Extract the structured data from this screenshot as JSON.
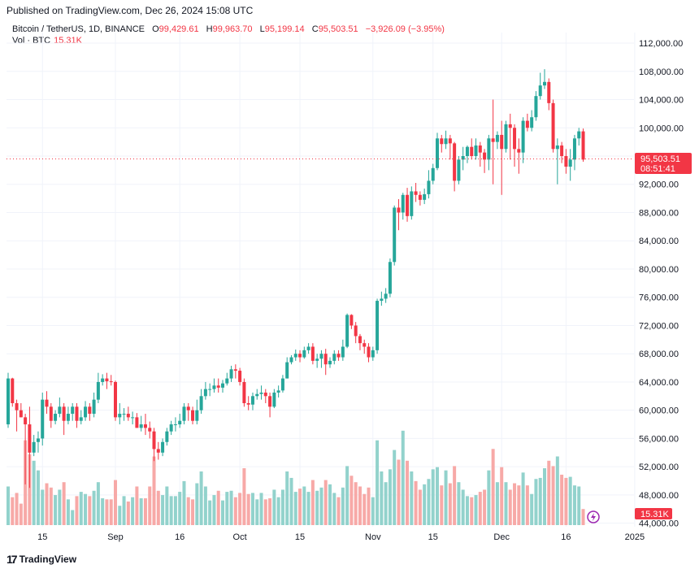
{
  "header": {
    "published": "Published on TradingView.com, Dec 26, 2024 15:08 UTC"
  },
  "legend": {
    "symbol": "Bitcoin / TetherUS, 1D, BINANCE",
    "o_label": "O",
    "o_value": "99,429.61",
    "h_label": "H",
    "h_value": "99,963.70",
    "l_label": "L",
    "l_value": "95,199.14",
    "c_label": "C",
    "c_value": "95,503.51",
    "change": "−3,926.09 (−3.95%)",
    "vol_label": "Vol · BTC",
    "vol_value": "15.31K"
  },
  "price_badge": {
    "price": "95,503.51",
    "countdown": "08:51:41"
  },
  "volume_badge": "15.31K",
  "footer": {
    "brand": "TradingView",
    "logo_glyph": "17"
  },
  "colors": {
    "up": "#26a69a",
    "down": "#f23645",
    "up_vol": "#92d2cc",
    "down_vol": "#f7a9a7",
    "grid": "#f0f3fa"
  },
  "chart_data": {
    "type": "candlestick",
    "title": "Bitcoin / TetherUS, 1D, BINANCE",
    "y_ticks": [
      "112,000.00",
      "108,000.00",
      "104,000.00",
      "100,000.00",
      "96,000.00",
      "92,000.00",
      "88,000.00",
      "84,000.00",
      "80,000.00",
      "76,000.00",
      "72,000.00",
      "68,000.00",
      "64,000.00",
      "60,000.00",
      "56,000.00",
      "52,000.00",
      "48,000.00",
      "44,000.00"
    ],
    "y_tick_values": [
      112000,
      108000,
      104000,
      100000,
      96000,
      92000,
      88000,
      84000,
      80000,
      76000,
      72000,
      68000,
      64000,
      60000,
      56000,
      52000,
      48000,
      44000
    ],
    "ylim": [
      43500,
      113500
    ],
    "x_labels": [
      {
        "label": "15",
        "index": 8
      },
      {
        "label": "Sep",
        "index": 25
      },
      {
        "label": "16",
        "index": 40
      },
      {
        "label": "Oct",
        "index": 54
      },
      {
        "label": "15",
        "index": 68
      },
      {
        "label": "Nov",
        "index": 85
      },
      {
        "label": "15",
        "index": 99
      },
      {
        "label": "Dec",
        "index": 115
      },
      {
        "label": "16",
        "index": 130
      },
      {
        "label": "2025",
        "index": 146
      }
    ],
    "candles": [
      [
        58000,
        64500,
        65300,
        57500,
        3.6
      ],
      [
        64500,
        61000,
        64600,
        60500,
        2.6
      ],
      [
        61000,
        60000,
        61500,
        57000,
        3.0
      ],
      [
        60000,
        59000,
        61000,
        59000,
        2.0
      ],
      [
        59000,
        58000,
        59500,
        49500,
        7.9
      ],
      [
        58000,
        54000,
        60500,
        49000,
        6.6
      ],
      [
        54000,
        55500,
        56500,
        53500,
        6.0
      ],
      [
        55500,
        56000,
        57000,
        54000,
        5.1
      ],
      [
        56000,
        61500,
        62500,
        55000,
        3.3
      ],
      [
        61500,
        60500,
        62700,
        59500,
        3.9
      ],
      [
        60500,
        58500,
        61000,
        57500,
        3.5
      ],
      [
        58500,
        59500,
        60000,
        58000,
        2.8
      ],
      [
        59500,
        60500,
        61800,
        59000,
        3.3
      ],
      [
        60500,
        58500,
        61000,
        56500,
        4.0
      ],
      [
        58500,
        59500,
        60500,
        58000,
        2.4
      ],
      [
        59500,
        60500,
        61000,
        58500,
        1.4
      ],
      [
        60500,
        58500,
        61000,
        57500,
        2.7
      ],
      [
        58500,
        59000,
        60000,
        58000,
        3.1
      ],
      [
        59000,
        60500,
        61300,
        58500,
        2.9
      ],
      [
        60500,
        59500,
        61000,
        58500,
        2.7
      ],
      [
        59500,
        61500,
        62500,
        59000,
        3.2
      ],
      [
        61500,
        64000,
        65300,
        61000,
        4.0
      ],
      [
        64000,
        64500,
        65100,
        63500,
        2.5
      ],
      [
        64500,
        64100,
        65300,
        63000,
        2.4
      ],
      [
        64100,
        64000,
        65000,
        63500,
        2.4
      ],
      [
        64000,
        59000,
        64200,
        58500,
        4.2
      ],
      [
        59000,
        59500,
        61000,
        58000,
        1.8
      ],
      [
        59500,
        59500,
        60300,
        58500,
        2.7
      ],
      [
        59500,
        59000,
        60500,
        58500,
        2.2
      ],
      [
        59000,
        59000,
        59800,
        58000,
        2.6
      ],
      [
        59000,
        57500,
        59600,
        57500,
        3.6
      ],
      [
        57500,
        58000,
        59200,
        57000,
        2.5
      ],
      [
        58000,
        57500,
        59500,
        56500,
        2.5
      ],
      [
        57500,
        57000,
        58400,
        56000,
        3.6
      ],
      [
        57000,
        54500,
        57500,
        52800,
        6.4
      ],
      [
        54500,
        54000,
        55500,
        53000,
        3.2
      ],
      [
        54000,
        55500,
        56000,
        53500,
        2.8
      ],
      [
        55500,
        57000,
        57500,
        55000,
        3.6
      ],
      [
        57000,
        58000,
        58500,
        56500,
        2.7
      ],
      [
        58000,
        58000,
        59000,
        57000,
        2.7
      ],
      [
        58000,
        58500,
        59500,
        57500,
        3.1
      ],
      [
        58500,
        60500,
        61000,
        58000,
        4.1
      ],
      [
        60500,
        60000,
        61000,
        58500,
        2.6
      ],
      [
        60000,
        58500,
        60500,
        58000,
        2.4
      ],
      [
        58500,
        60000,
        61500,
        58000,
        3.9
      ],
      [
        60000,
        62000,
        63000,
        59500,
        5.0
      ],
      [
        62000,
        63000,
        64000,
        61500,
        3.6
      ],
      [
        63000,
        63000,
        63800,
        62000,
        2.3
      ],
      [
        63000,
        63500,
        64500,
        62500,
        2.8
      ],
      [
        63500,
        63200,
        64500,
        62500,
        3.2
      ],
      [
        63200,
        63800,
        64300,
        62500,
        2.3
      ],
      [
        63800,
        64500,
        65300,
        63500,
        3.1
      ],
      [
        64500,
        65800,
        66300,
        64000,
        3.2
      ],
      [
        65800,
        65600,
        66500,
        64500,
        2.6
      ],
      [
        65600,
        64000,
        66000,
        63500,
        3.0
      ],
      [
        64000,
        61000,
        64500,
        60500,
        5.3
      ],
      [
        61000,
        60800,
        62000,
        60000,
        2.9
      ],
      [
        60800,
        62000,
        62500,
        60000,
        3.0
      ],
      [
        62000,
        62300,
        63000,
        61500,
        2.4
      ],
      [
        62300,
        62500,
        63500,
        61500,
        3.0
      ],
      [
        62500,
        62000,
        63000,
        61000,
        2.4
      ],
      [
        62000,
        60500,
        62500,
        59000,
        2.5
      ],
      [
        60500,
        62500,
        63000,
        60300,
        3.3
      ],
      [
        62500,
        62800,
        63500,
        61800,
        2.6
      ],
      [
        62800,
        64500,
        65000,
        62500,
        3.3
      ],
      [
        64500,
        66800,
        67500,
        64500,
        5.0
      ],
      [
        66800,
        67500,
        67800,
        66500,
        4.4
      ],
      [
        67500,
        68000,
        68600,
        67000,
        3.1
      ],
      [
        68000,
        67500,
        68500,
        66800,
        3.4
      ],
      [
        67500,
        68500,
        69000,
        67300,
        3.6
      ],
      [
        68500,
        69000,
        69500,
        68000,
        3.1
      ],
      [
        69000,
        67000,
        69500,
        66500,
        4.2
      ],
      [
        67000,
        67300,
        68000,
        66000,
        3.2
      ],
      [
        67300,
        68000,
        68500,
        66000,
        3.5
      ],
      [
        68000,
        66500,
        68700,
        65000,
        4.2
      ],
      [
        66500,
        67000,
        67500,
        66000,
        3.8
      ],
      [
        67000,
        68000,
        68500,
        66500,
        3.0
      ],
      [
        68000,
        67500,
        68500,
        67000,
        2.6
      ],
      [
        67500,
        69000,
        70000,
        67000,
        3.5
      ],
      [
        69000,
        73500,
        73700,
        68800,
        5.5
      ],
      [
        73500,
        72000,
        73600,
        71500,
        4.6
      ],
      [
        72000,
        70500,
        72500,
        69500,
        4.0
      ],
      [
        70500,
        69500,
        70800,
        68500,
        3.6
      ],
      [
        69500,
        69000,
        70000,
        68000,
        2.9
      ],
      [
        69000,
        67500,
        69500,
        66800,
        3.5
      ],
      [
        67500,
        68500,
        69000,
        67000,
        2.6
      ],
      [
        68500,
        75500,
        75800,
        68000,
        7.9
      ],
      [
        75500,
        75800,
        76800,
        74800,
        5.0
      ],
      [
        75800,
        76500,
        77300,
        75200,
        4.0
      ],
      [
        76500,
        81000,
        81500,
        76000,
        5.2
      ],
      [
        81000,
        88700,
        89000,
        80500,
        7.0
      ],
      [
        88700,
        88000,
        89900,
        85500,
        6.1
      ],
      [
        88000,
        90500,
        90800,
        87000,
        8.8
      ],
      [
        90500,
        87500,
        91500,
        86700,
        6.0
      ],
      [
        87500,
        91000,
        91700,
        87000,
        5.0
      ],
      [
        91000,
        90500,
        92200,
        89500,
        4.1
      ],
      [
        90500,
        89800,
        91000,
        89000,
        3.3
      ],
      [
        89800,
        90600,
        91400,
        89200,
        3.8
      ],
      [
        90600,
        92500,
        94000,
        90000,
        4.3
      ],
      [
        92500,
        94300,
        94900,
        92000,
        5.2
      ],
      [
        94300,
        98500,
        99300,
        94000,
        5.4
      ],
      [
        98500,
        97700,
        99000,
        96500,
        3.7
      ],
      [
        97700,
        98500,
        99600,
        97000,
        5.1
      ],
      [
        98500,
        97800,
        99000,
        95500,
        3.9
      ],
      [
        97800,
        92500,
        98000,
        91000,
        5.5
      ],
      [
        92500,
        95500,
        96000,
        92000,
        4.0
      ],
      [
        95500,
        96000,
        97300,
        94000,
        3.3
      ],
      [
        96000,
        97300,
        97500,
        95000,
        2.7
      ],
      [
        97300,
        96000,
        98500,
        95500,
        2.6
      ],
      [
        96000,
        97500,
        98500,
        95500,
        2.8
      ],
      [
        97500,
        96500,
        98000,
        94500,
        3.1
      ],
      [
        96500,
        95500,
        97000,
        93600,
        3.3
      ],
      [
        95500,
        98500,
        99000,
        94000,
        5.1
      ],
      [
        98500,
        98000,
        104000,
        92000,
        7.1
      ],
      [
        98000,
        99000,
        99500,
        97000,
        4.0
      ],
      [
        99000,
        97000,
        101000,
        90500,
        5.4
      ],
      [
        97000,
        100500,
        101000,
        96500,
        4.0
      ],
      [
        100500,
        100000,
        102000,
        95500,
        3.3
      ],
      [
        100000,
        97000,
        100500,
        94500,
        3.9
      ],
      [
        97000,
        96500,
        98500,
        93500,
        3.7
      ],
      [
        96500,
        101000,
        101500,
        95000,
        4.9
      ],
      [
        101000,
        100000,
        102000,
        99500,
        3.7
      ],
      [
        100000,
        101500,
        102500,
        99500,
        2.9
      ],
      [
        101500,
        104500,
        105200,
        101000,
        4.3
      ],
      [
        104500,
        106000,
        107800,
        104000,
        4.4
      ],
      [
        106000,
        106500,
        108300,
        105500,
        5.3
      ],
      [
        106500,
        103500,
        107000,
        102500,
        6.0
      ],
      [
        103500,
        97000,
        104000,
        96500,
        5.5
      ],
      [
        97000,
        97500,
        98500,
        92000,
        6.4
      ],
      [
        97500,
        96000,
        98000,
        95000,
        4.7
      ],
      [
        96000,
        94500,
        97000,
        93500,
        4.4
      ],
      [
        94500,
        95500,
        97000,
        92500,
        4.5
      ],
      [
        95500,
        98500,
        99000,
        94000,
        3.7
      ],
      [
        98500,
        99500,
        100000,
        97500,
        3.6
      ],
      [
        99500,
        95500,
        99900,
        95200,
        1.5
      ]
    ]
  }
}
